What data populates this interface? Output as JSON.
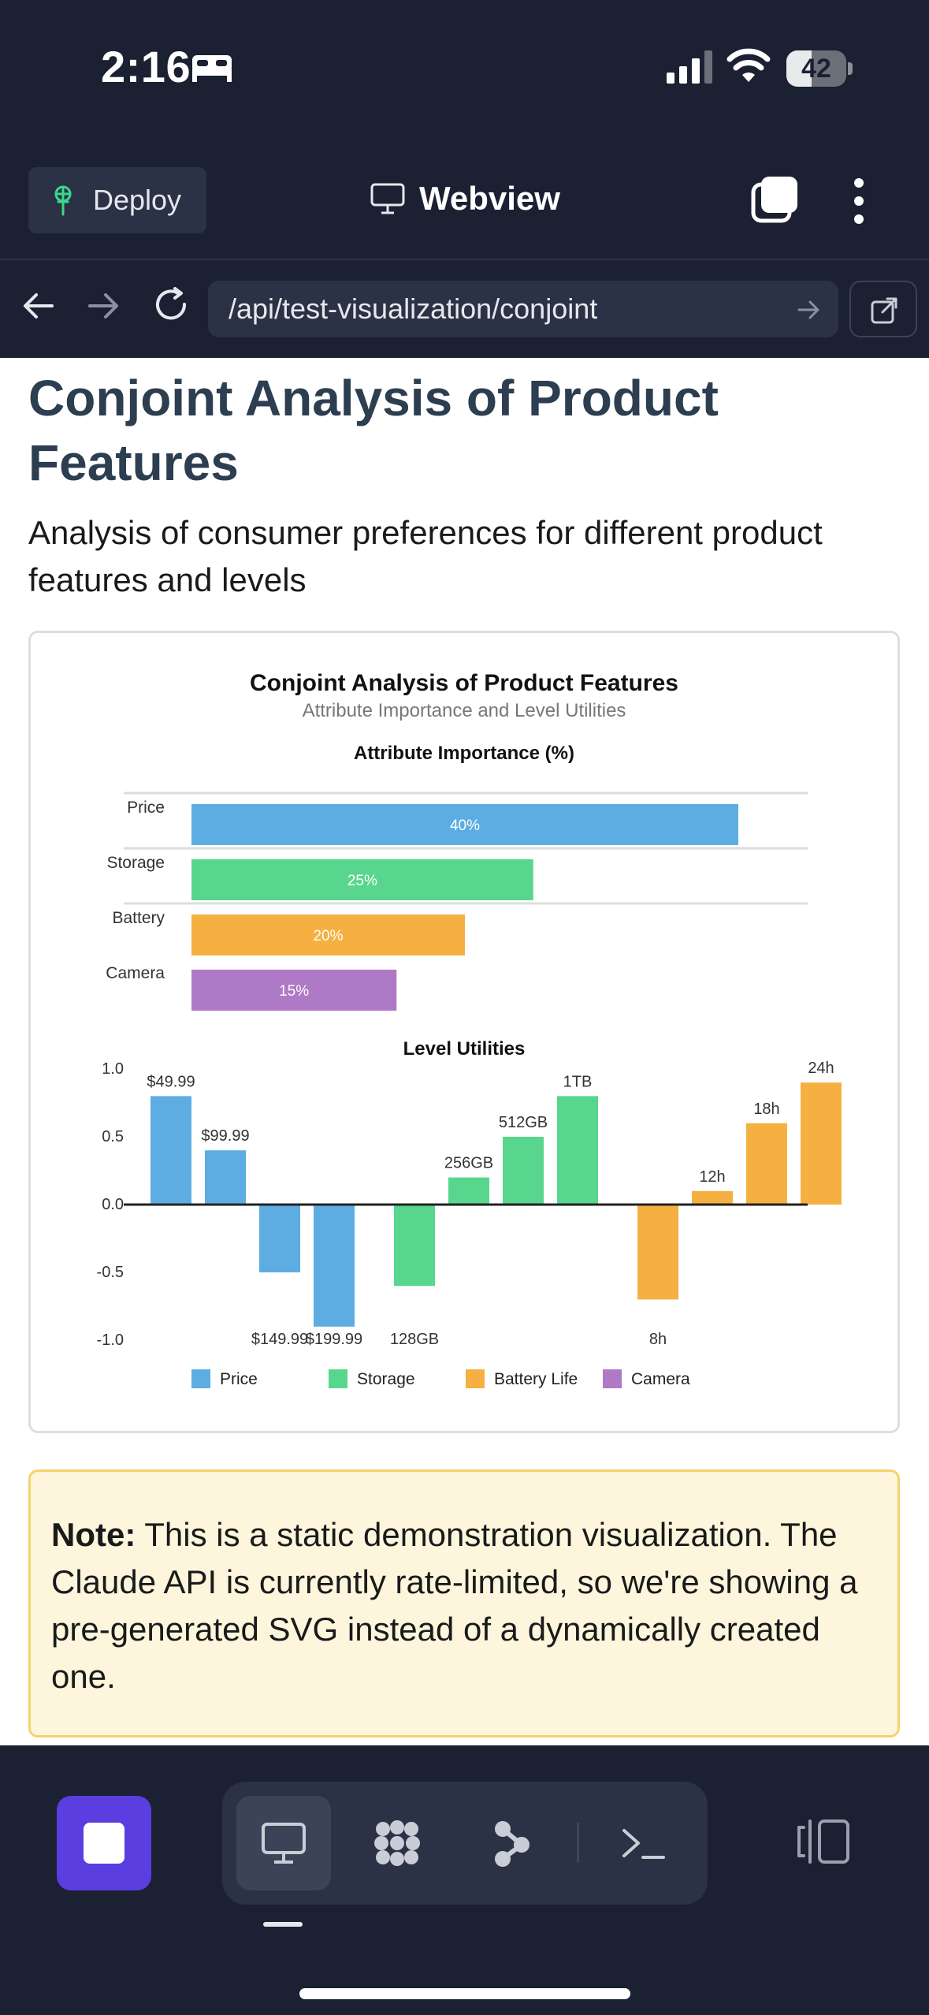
{
  "status_bar": {
    "time": "2:16",
    "battery": "42",
    "battery_level": 0.42
  },
  "header": {
    "deploy_label": "Deploy",
    "title": "Webview"
  },
  "url_bar": {
    "url": "/api/test-visualization/conjoint"
  },
  "page": {
    "title": "Conjoint Analysis of Product Features",
    "subtitle": "Analysis of consumer preferences for different product features and levels",
    "note_label": "Note:",
    "note_text": " This is a static demonstration visualization. The Claude API is currently rate-limited, so we're showing a pre-generated SVG instead of a dynamically created one."
  },
  "chart_data": [
    {
      "type": "bar",
      "orientation": "horizontal",
      "title": "Conjoint Analysis of Product Features",
      "subtitle": "Attribute Importance and Level Utilities",
      "panel_title": "Attribute Importance (%)",
      "categories": [
        "Price",
        "Storage",
        "Battery",
        "Camera"
      ],
      "values": [
        40,
        25,
        20,
        15
      ],
      "labels": [
        "40%",
        "25%",
        "20%",
        "15%"
      ],
      "colors": [
        "#5dade2",
        "#58d68d",
        "#f5b041",
        "#af7ac5"
      ],
      "xlim": [
        0,
        45
      ]
    },
    {
      "type": "bar",
      "panel_title": "Level Utilities",
      "ylim": [
        -1.0,
        1.0
      ],
      "yticks": [
        "1.0",
        "0.5",
        "0.0",
        "-0.5",
        "-1.0"
      ],
      "ytick_values": [
        1.0,
        0.5,
        0.0,
        -0.5,
        -1.0
      ],
      "groups": [
        {
          "name": "Price",
          "color": "#5dade2",
          "levels": [
            "$49.99",
            "$99.99",
            "$149.99",
            "$199.99"
          ],
          "values": [
            0.8,
            0.4,
            -0.5,
            -0.9
          ]
        },
        {
          "name": "Storage",
          "color": "#58d68d",
          "levels": [
            "128GB",
            "256GB",
            "512GB",
            "1TB"
          ],
          "values": [
            -0.6,
            0.2,
            0.5,
            0.8
          ]
        },
        {
          "name": "Battery Life",
          "color": "#f5b041",
          "levels": [
            "8h",
            "12h",
            "18h",
            "24h"
          ],
          "values": [
            -0.7,
            0.1,
            0.6,
            0.9
          ]
        }
      ],
      "legend": [
        {
          "name": "Price",
          "color": "#5dade2"
        },
        {
          "name": "Storage",
          "color": "#58d68d"
        },
        {
          "name": "Battery Life",
          "color": "#f5b041"
        },
        {
          "name": "Camera",
          "color": "#af7ac5"
        }
      ],
      "legend_position": "bottom"
    }
  ]
}
